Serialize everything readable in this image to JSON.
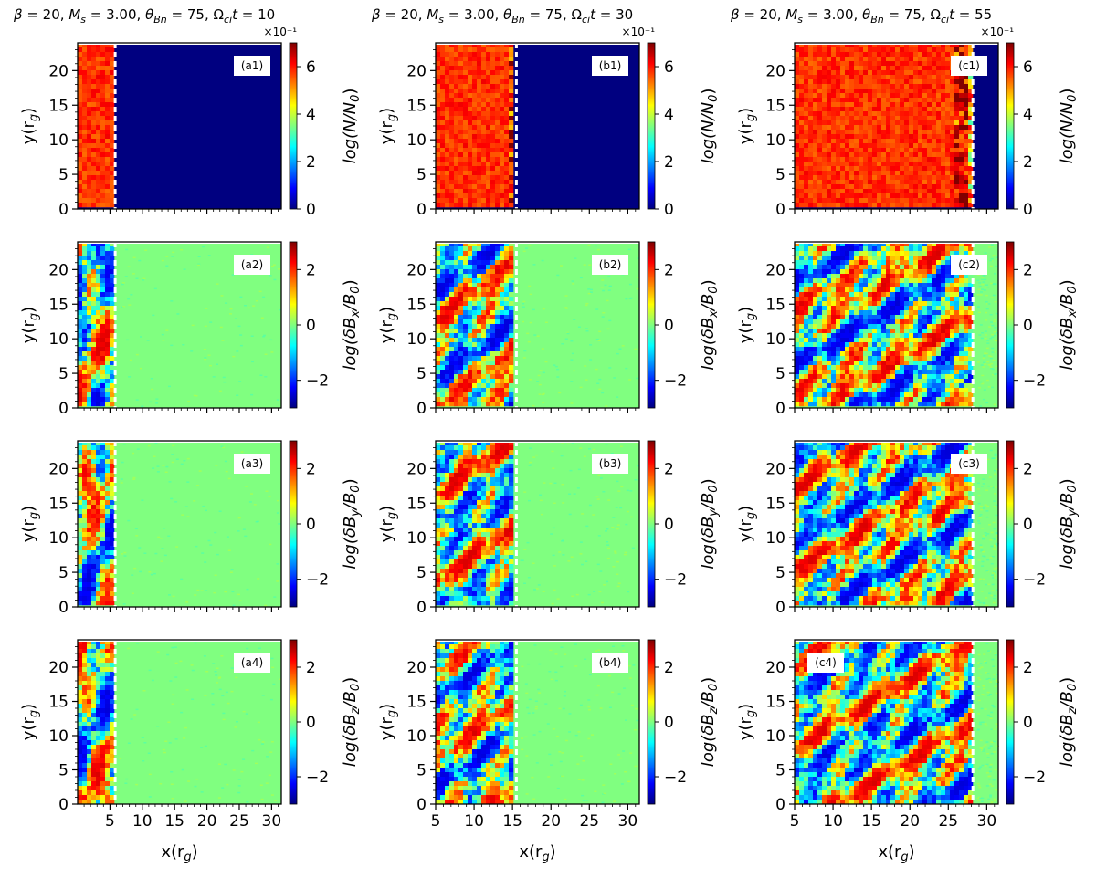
{
  "chart_data": {
    "type": "heatmap",
    "columns": [
      {
        "id": "a",
        "title": "β = 20, M_s = 3.00, θ_Bn = 75, Ω_ci t = 10",
        "title_parts": {
          "beta": "20",
          "ms": "3.00",
          "theta": "75",
          "t": "10"
        },
        "xlim": [
          0,
          31.5
        ],
        "x_ticks": [
          5,
          10,
          15,
          20,
          25,
          30
        ],
        "x_tick_labels": [
          "5",
          "10",
          "15",
          "20",
          "25",
          "30"
        ],
        "shock_x": 5.8,
        "turb_left": 0,
        "wave_angle": 7
      },
      {
        "id": "b",
        "title": "β = 20, M_s = 3.00, θ_Bn = 75, Ω_ci t = 30",
        "title_parts": {
          "beta": "20",
          "ms": "3.00",
          "theta": "75",
          "t": "30"
        },
        "xlim": [
          5,
          31.5
        ],
        "x_ticks": [
          5,
          10,
          15,
          20,
          25,
          30
        ],
        "x_tick_labels": [
          "5",
          "10",
          "15",
          "20",
          "25",
          "30"
        ],
        "shock_x": 15.5,
        "turb_left": 5,
        "wave_angle": 35
      },
      {
        "id": "c",
        "title": "β = 20, M_s = 3.00, θ_Bn = 75, Ω_ci t = 55",
        "title_parts": {
          "beta": "20",
          "ms": "3.00",
          "theta": "75",
          "t": "55"
        },
        "xlim": [
          5,
          31.5
        ],
        "x_ticks": [
          5,
          10,
          15,
          20,
          25,
          30
        ],
        "x_tick_labels": [
          "5",
          "10",
          "15",
          "20",
          "25",
          "30"
        ],
        "shock_x": 28.2,
        "turb_left": 5,
        "wave_angle": 40
      }
    ],
    "rows": [
      {
        "quantity": "density",
        "cbar_label_main": "log(N/N",
        "cbar_label_sub": "0",
        "cbar_label_end": ")",
        "cbar_range": [
          0,
          0.7
        ],
        "cbar_ticks": [
          0,
          2,
          4,
          6
        ],
        "cbar_multiplier": "×10⁻¹",
        "panel_labels": [
          "(a1)",
          "(b1)",
          "(c1)"
        ]
      },
      {
        "quantity": "dBx",
        "cbar_label_main": "log(δB",
        "cbar_label_comp": "x",
        "cbar_label_tail": "/B",
        "cbar_label_sub": "0",
        "cbar_label_end": ")",
        "cbar_range": [
          -3,
          3
        ],
        "cbar_ticks": [
          -2,
          0,
          2
        ],
        "cbar_multiplier": "",
        "panel_labels": [
          "(a2)",
          "(b2)",
          "(c2)"
        ]
      },
      {
        "quantity": "dBy",
        "cbar_label_main": "log(δB",
        "cbar_label_comp": "y",
        "cbar_label_tail": "/B",
        "cbar_label_sub": "0",
        "cbar_label_end": ")",
        "cbar_range": [
          -3,
          3
        ],
        "cbar_ticks": [
          -2,
          0,
          2
        ],
        "cbar_multiplier": "",
        "panel_labels": [
          "(a3)",
          "(b3)",
          "(c3)"
        ]
      },
      {
        "quantity": "dBz",
        "cbar_label_main": "log(δB",
        "cbar_label_comp": "z",
        "cbar_label_tail": "/B",
        "cbar_label_sub": "0",
        "cbar_label_end": ")",
        "cbar_range": [
          -3,
          3
        ],
        "cbar_ticks": [
          -2,
          0,
          2
        ],
        "cbar_multiplier": "",
        "panel_labels": [
          "(a4)",
          "(b4)",
          "(c4)"
        ]
      }
    ],
    "ylim": [
      0,
      24
    ],
    "y_ticks": [
      0,
      5,
      10,
      15,
      20
    ],
    "y_tick_labels": [
      "0",
      "5",
      "10",
      "15",
      "20"
    ],
    "ylabel_main": "y(r",
    "ylabel_sub": "g",
    "ylabel_end": ")",
    "xlabel_main": "x(r",
    "xlabel_sub": "g",
    "xlabel_end": ")",
    "density_values": {
      "upstream": 0.0,
      "downstream": 0.58,
      "shock_peak": 0.7
    },
    "field_values": {
      "upstream": 0.0,
      "downstream_amplitude": 3
    },
    "colormap": "jet"
  }
}
